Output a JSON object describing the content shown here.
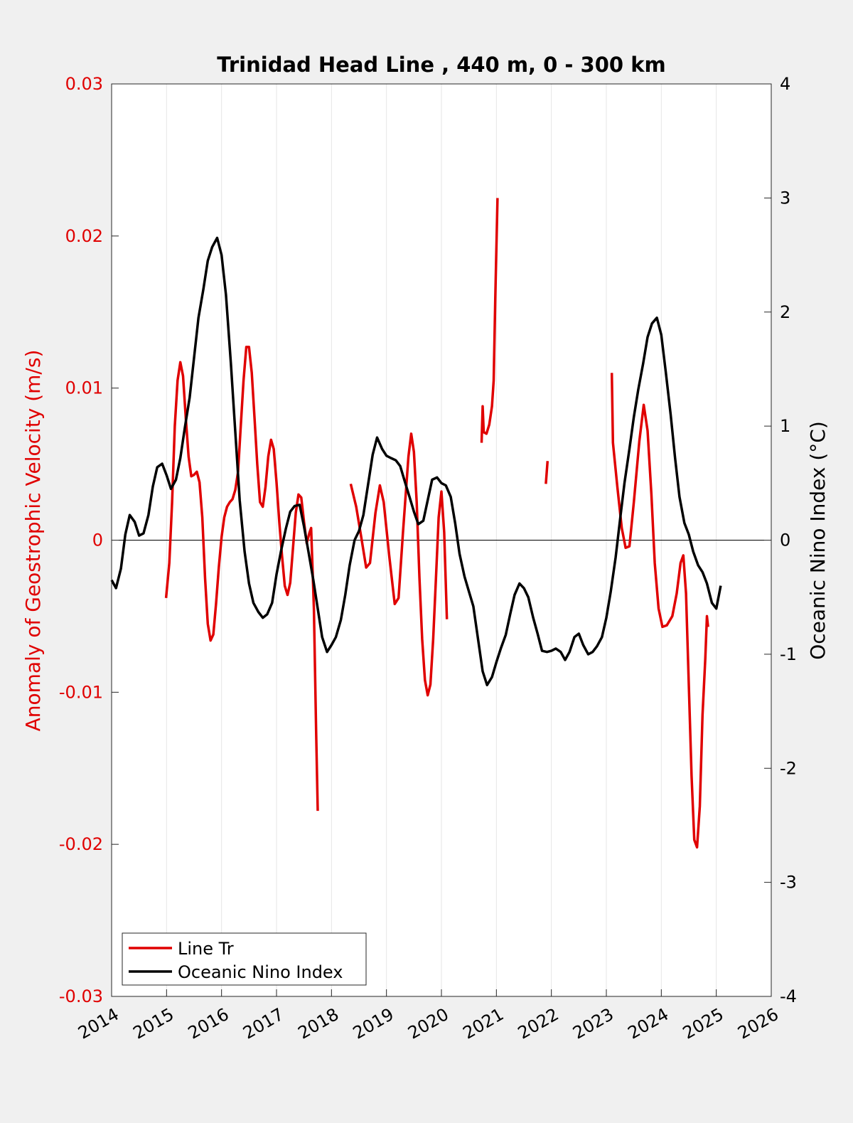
{
  "chart_data": {
    "type": "line",
    "title": "Trinidad Head Line , 440 m, 0 - 300 km",
    "ylabel_left": "Anomaly of Geostrophic Velocity (m/s)",
    "ylabel_right": "Oceanic Nino Index (°C)",
    "xlabel": "",
    "xlim": [
      2014,
      2026
    ],
    "ylim_left": [
      -0.03,
      0.03
    ],
    "ylim_right": [
      -4,
      4
    ],
    "x_ticks": [
      "2014",
      "2015",
      "2016",
      "2017",
      "2018",
      "2019",
      "2020",
      "2021",
      "2022",
      "2023",
      "2024",
      "2025",
      "2026"
    ],
    "y_left_ticks": [
      "-0.03",
      "-0.02",
      "-0.01",
      "0",
      "0.01",
      "0.02",
      "0.03"
    ],
    "y_right_ticks": [
      "-4",
      "-3",
      "-2",
      "-1",
      "0",
      "1",
      "2",
      "3",
      "4"
    ],
    "grid": "vertical",
    "legend_placement": "bottom-left",
    "colors": {
      "line_tr": "#e00000",
      "oni": "#000000",
      "zero_line": "#000000"
    },
    "series": [
      {
        "name": "Line Tr",
        "axis": "left",
        "segments": [
          [
            [
              2014.99,
              -0.0038
            ],
            [
              2015.05,
              -0.0015
            ],
            [
              2015.1,
              0.0025
            ],
            [
              2015.15,
              0.0075
            ],
            [
              2015.2,
              0.0105
            ],
            [
              2015.25,
              0.0117
            ],
            [
              2015.3,
              0.0108
            ],
            [
              2015.35,
              0.008
            ],
            [
              2015.4,
              0.0055
            ],
            [
              2015.45,
              0.0042
            ],
            [
              2015.5,
              0.0043
            ],
            [
              2015.55,
              0.0045
            ],
            [
              2015.6,
              0.0038
            ],
            [
              2015.65,
              0.0015
            ],
            [
              2015.7,
              -0.0025
            ],
            [
              2015.75,
              -0.0055
            ],
            [
              2015.8,
              -0.0066
            ],
            [
              2015.85,
              -0.0062
            ],
            [
              2015.9,
              -0.0042
            ],
            [
              2015.95,
              -0.0018
            ],
            [
              2016.0,
              0.0002
            ],
            [
              2016.05,
              0.0015
            ],
            [
              2016.1,
              0.0022
            ],
            [
              2016.15,
              0.0025
            ],
            [
              2016.2,
              0.0027
            ],
            [
              2016.25,
              0.0033
            ],
            [
              2016.3,
              0.0045
            ],
            [
              2016.35,
              0.0075
            ],
            [
              2016.4,
              0.0105
            ],
            [
              2016.45,
              0.0127
            ],
            [
              2016.5,
              0.0127
            ],
            [
              2016.55,
              0.011
            ],
            [
              2016.6,
              0.008
            ],
            [
              2016.65,
              0.005
            ],
            [
              2016.7,
              0.0025
            ],
            [
              2016.75,
              0.0022
            ],
            [
              2016.8,
              0.0035
            ],
            [
              2016.85,
              0.0055
            ],
            [
              2016.9,
              0.0066
            ],
            [
              2016.95,
              0.006
            ],
            [
              2017.0,
              0.0038
            ],
            [
              2017.05,
              0.0012
            ],
            [
              2017.1,
              -0.001
            ],
            [
              2017.15,
              -0.003
            ],
            [
              2017.2,
              -0.0036
            ],
            [
              2017.25,
              -0.0028
            ],
            [
              2017.3,
              -0.0005
            ],
            [
              2017.35,
              0.0018
            ],
            [
              2017.4,
              0.003
            ],
            [
              2017.45,
              0.0028
            ],
            [
              2017.5,
              0.0012
            ],
            [
              2017.55,
              -0.0002
            ],
            [
              2017.6,
              0.0005
            ],
            [
              2017.63,
              0.0008
            ],
            [
              2017.68,
              -0.0045
            ],
            [
              2017.72,
              -0.0125
            ],
            [
              2017.75,
              -0.0178
            ]
          ],
          [
            [
              2018.35,
              0.0037
            ],
            [
              2018.45,
              0.0022
            ],
            [
              2018.55,
              0.0
            ],
            [
              2018.63,
              -0.0018
            ],
            [
              2018.7,
              -0.0015
            ],
            [
              2018.8,
              0.0018
            ],
            [
              2018.88,
              0.0036
            ],
            [
              2018.95,
              0.0025
            ],
            [
              2019.05,
              -0.001
            ],
            [
              2019.15,
              -0.0042
            ],
            [
              2019.22,
              -0.0038
            ],
            [
              2019.3,
              0.0005
            ],
            [
              2019.4,
              0.0055
            ],
            [
              2019.45,
              0.007
            ],
            [
              2019.5,
              0.0058
            ],
            [
              2019.55,
              0.0025
            ],
            [
              2019.6,
              -0.0025
            ],
            [
              2019.65,
              -0.0065
            ],
            [
              2019.7,
              -0.0092
            ],
            [
              2019.75,
              -0.0102
            ],
            [
              2019.8,
              -0.0095
            ],
            [
              2019.85,
              -0.0065
            ],
            [
              2019.9,
              -0.0025
            ],
            [
              2019.95,
              0.0015
            ],
            [
              2020.0,
              0.0032
            ],
            [
              2020.05,
              0.0005
            ],
            [
              2020.1,
              -0.0052
            ]
          ],
          [
            [
              2020.73,
              0.0064
            ],
            [
              2020.75,
              0.0088
            ],
            [
              2020.77,
              0.0071
            ],
            [
              2020.82,
              0.007
            ],
            [
              2020.87,
              0.0076
            ],
            [
              2020.92,
              0.0088
            ],
            [
              2020.95,
              0.0105
            ],
            [
              2020.98,
              0.016
            ],
            [
              2021.02,
              0.0225
            ]
          ],
          [
            [
              2021.9,
              0.0037
            ],
            [
              2021.93,
              0.0052
            ]
          ],
          [
            [
              2023.1,
              0.011
            ],
            [
              2023.12,
              0.0064
            ],
            [
              2023.2,
              0.0035
            ],
            [
              2023.28,
              0.0008
            ],
            [
              2023.35,
              -0.0005
            ],
            [
              2023.42,
              -0.0004
            ],
            [
              2023.5,
              0.0025
            ],
            [
              2023.6,
              0.0065
            ],
            [
              2023.68,
              0.0089
            ],
            [
              2023.75,
              0.0072
            ],
            [
              2023.82,
              0.003
            ],
            [
              2023.88,
              -0.0015
            ],
            [
              2023.95,
              -0.0045
            ],
            [
              2024.02,
              -0.0057
            ],
            [
              2024.1,
              -0.0056
            ],
            [
              2024.2,
              -0.005
            ],
            [
              2024.28,
              -0.0035
            ],
            [
              2024.35,
              -0.0015
            ],
            [
              2024.4,
              -0.001
            ],
            [
              2024.45,
              -0.0035
            ],
            [
              2024.5,
              -0.0095
            ],
            [
              2024.55,
              -0.0155
            ],
            [
              2024.6,
              -0.0197
            ],
            [
              2024.65,
              -0.0202
            ],
            [
              2024.7,
              -0.0175
            ],
            [
              2024.75,
              -0.0115
            ],
            [
              2024.8,
              -0.0078
            ],
            [
              2024.83,
              -0.005
            ],
            [
              2024.85,
              -0.0057
            ]
          ]
        ]
      },
      {
        "name": "Oceanic Nino Index",
        "axis": "right",
        "segments": [
          [
            [
              2014.0,
              -0.35
            ],
            [
              2014.08,
              -0.42
            ],
            [
              2014.17,
              -0.25
            ],
            [
              2014.25,
              0.05
            ],
            [
              2014.33,
              0.22
            ],
            [
              2014.42,
              0.16
            ],
            [
              2014.5,
              0.04
            ],
            [
              2014.58,
              0.06
            ],
            [
              2014.67,
              0.22
            ],
            [
              2014.75,
              0.47
            ],
            [
              2014.83,
              0.64
            ],
            [
              2014.92,
              0.67
            ],
            [
              2015.0,
              0.57
            ],
            [
              2015.08,
              0.45
            ],
            [
              2015.17,
              0.53
            ],
            [
              2015.25,
              0.72
            ],
            [
              2015.33,
              0.98
            ],
            [
              2015.42,
              1.25
            ],
            [
              2015.5,
              1.6
            ],
            [
              2015.58,
              1.95
            ],
            [
              2015.67,
              2.2
            ],
            [
              2015.75,
              2.45
            ],
            [
              2015.83,
              2.57
            ],
            [
              2015.92,
              2.65
            ],
            [
              2016.0,
              2.5
            ],
            [
              2016.08,
              2.15
            ],
            [
              2016.17,
              1.55
            ],
            [
              2016.25,
              0.95
            ],
            [
              2016.33,
              0.35
            ],
            [
              2016.42,
              -0.1
            ],
            [
              2016.5,
              -0.38
            ],
            [
              2016.58,
              -0.55
            ],
            [
              2016.67,
              -0.63
            ],
            [
              2016.75,
              -0.68
            ],
            [
              2016.83,
              -0.65
            ],
            [
              2016.92,
              -0.55
            ],
            [
              2017.0,
              -0.3
            ],
            [
              2017.08,
              -0.1
            ],
            [
              2017.17,
              0.1
            ],
            [
              2017.25,
              0.25
            ],
            [
              2017.33,
              0.3
            ],
            [
              2017.42,
              0.31
            ],
            [
              2017.5,
              0.12
            ],
            [
              2017.58,
              -0.1
            ],
            [
              2017.67,
              -0.35
            ],
            [
              2017.75,
              -0.6
            ],
            [
              2017.83,
              -0.85
            ],
            [
              2017.92,
              -0.98
            ],
            [
              2018.0,
              -0.92
            ],
            [
              2018.08,
              -0.85
            ],
            [
              2018.17,
              -0.7
            ],
            [
              2018.25,
              -0.48
            ],
            [
              2018.33,
              -0.22
            ],
            [
              2018.42,
              0.0
            ],
            [
              2018.5,
              0.08
            ],
            [
              2018.58,
              0.22
            ],
            [
              2018.67,
              0.5
            ],
            [
              2018.75,
              0.75
            ],
            [
              2018.83,
              0.9
            ],
            [
              2018.92,
              0.8
            ],
            [
              2019.0,
              0.74
            ],
            [
              2019.08,
              0.72
            ],
            [
              2019.17,
              0.7
            ],
            [
              2019.25,
              0.65
            ],
            [
              2019.33,
              0.52
            ],
            [
              2019.42,
              0.38
            ],
            [
              2019.5,
              0.25
            ],
            [
              2019.58,
              0.14
            ],
            [
              2019.67,
              0.17
            ],
            [
              2019.75,
              0.35
            ],
            [
              2019.83,
              0.53
            ],
            [
              2019.92,
              0.55
            ],
            [
              2020.0,
              0.5
            ],
            [
              2020.08,
              0.48
            ],
            [
              2020.17,
              0.38
            ],
            [
              2020.25,
              0.15
            ],
            [
              2020.33,
              -0.12
            ],
            [
              2020.42,
              -0.32
            ],
            [
              2020.5,
              -0.45
            ],
            [
              2020.58,
              -0.58
            ],
            [
              2020.67,
              -0.88
            ],
            [
              2020.75,
              -1.15
            ],
            [
              2020.83,
              -1.27
            ],
            [
              2020.92,
              -1.2
            ],
            [
              2021.0,
              -1.07
            ],
            [
              2021.08,
              -0.95
            ],
            [
              2021.17,
              -0.83
            ],
            [
              2021.25,
              -0.65
            ],
            [
              2021.33,
              -0.48
            ],
            [
              2021.42,
              -0.38
            ],
            [
              2021.5,
              -0.42
            ],
            [
              2021.58,
              -0.5
            ],
            [
              2021.67,
              -0.68
            ],
            [
              2021.75,
              -0.82
            ],
            [
              2021.83,
              -0.97
            ],
            [
              2021.92,
              -0.98
            ],
            [
              2022.0,
              -0.97
            ],
            [
              2022.08,
              -0.95
            ],
            [
              2022.17,
              -0.98
            ],
            [
              2022.25,
              -1.05
            ],
            [
              2022.33,
              -0.98
            ],
            [
              2022.42,
              -0.85
            ],
            [
              2022.5,
              -0.82
            ],
            [
              2022.58,
              -0.92
            ],
            [
              2022.67,
              -1.0
            ],
            [
              2022.75,
              -0.98
            ],
            [
              2022.83,
              -0.93
            ],
            [
              2022.92,
              -0.85
            ],
            [
              2023.0,
              -0.68
            ],
            [
              2023.08,
              -0.45
            ],
            [
              2023.17,
              -0.15
            ],
            [
              2023.25,
              0.18
            ],
            [
              2023.33,
              0.5
            ],
            [
              2023.42,
              0.8
            ],
            [
              2023.5,
              1.08
            ],
            [
              2023.58,
              1.32
            ],
            [
              2023.67,
              1.55
            ],
            [
              2023.75,
              1.78
            ],
            [
              2023.83,
              1.9
            ],
            [
              2023.92,
              1.95
            ],
            [
              2024.0,
              1.8
            ],
            [
              2024.08,
              1.48
            ],
            [
              2024.17,
              1.1
            ],
            [
              2024.25,
              0.72
            ],
            [
              2024.33,
              0.38
            ],
            [
              2024.42,
              0.15
            ],
            [
              2024.5,
              0.05
            ],
            [
              2024.58,
              -0.1
            ],
            [
              2024.67,
              -0.22
            ],
            [
              2024.75,
              -0.28
            ],
            [
              2024.83,
              -0.38
            ],
            [
              2024.92,
              -0.55
            ],
            [
              2025.0,
              -0.6
            ],
            [
              2025.08,
              -0.4
            ]
          ]
        ]
      }
    ]
  }
}
